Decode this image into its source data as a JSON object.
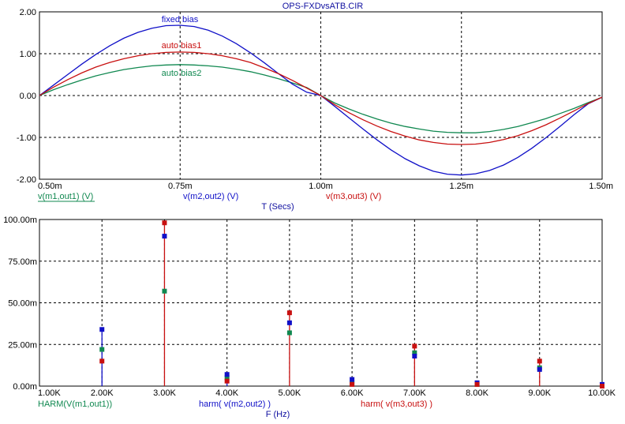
{
  "window": {
    "title": "OPS-FXDvsATB.CIR"
  },
  "colors": {
    "fixed": "#1010c8",
    "auto1": "#c81010",
    "auto2": "#108850",
    "grid": "#000000",
    "axis_text": "#000000",
    "label_blue": "#1010a0"
  },
  "chart_data": [
    {
      "type": "line",
      "title": "OPS-FXDvsATB.CIR",
      "xlabel": "T (Secs)",
      "ylabel": "",
      "x_ticks": [
        "0.50m",
        "0.75m",
        "1.00m",
        "1.25m",
        "1.50m"
      ],
      "y_ticks": [
        "-2.00",
        "-1.00",
        "0.00",
        "1.00",
        "2.00"
      ],
      "xlim": [
        0.0005,
        0.0015
      ],
      "ylim": [
        -2,
        2
      ],
      "grid": true,
      "trace_labels": [
        {
          "name": "v(m1,out1) (V)",
          "color": "#108850"
        },
        {
          "name": "v(m2,out2) (V)",
          "color": "#1010c8"
        },
        {
          "name": "v(m3,out3) (V)",
          "color": "#c81010"
        }
      ],
      "annotations": [
        {
          "text": "fixed bias",
          "series": 1
        },
        {
          "text": "auto bias1",
          "series": 2
        },
        {
          "text": "auto bias2",
          "series": 0
        }
      ],
      "series": [
        {
          "color": "#108850",
          "x": [
            0.0005,
            0.000525,
            0.00055,
            0.000575,
            0.0006,
            0.000625,
            0.00065,
            0.000675,
            0.0007,
            0.000725,
            0.00075,
            0.000775,
            0.0008,
            0.000825,
            0.00085,
            0.000875,
            0.0009,
            0.000925,
            0.00095,
            0.000975,
            0.001,
            0.001025,
            0.00105,
            0.001075,
            0.0011,
            0.001125,
            0.00115,
            0.001175,
            0.0012,
            0.001225,
            0.00125,
            0.001275,
            0.0013,
            0.001325,
            0.00135,
            0.001375,
            0.0014,
            0.001425,
            0.00145,
            0.001475,
            0.0015
          ],
          "y": [
            0.0,
            0.14,
            0.26,
            0.37,
            0.47,
            0.55,
            0.62,
            0.67,
            0.71,
            0.73,
            0.74,
            0.73,
            0.71,
            0.68,
            0.63,
            0.57,
            0.49,
            0.4,
            0.3,
            0.19,
            0.0,
            -0.18,
            -0.32,
            -0.45,
            -0.56,
            -0.66,
            -0.74,
            -0.8,
            -0.85,
            -0.88,
            -0.89,
            -0.89,
            -0.86,
            -0.81,
            -0.74,
            -0.65,
            -0.55,
            -0.43,
            -0.31,
            -0.17,
            -0.04
          ]
        },
        {
          "color": "#1010c8",
          "x": [
            0.0005,
            0.000525,
            0.00055,
            0.000575,
            0.0006,
            0.000625,
            0.00065,
            0.000675,
            0.0007,
            0.000725,
            0.00075,
            0.000775,
            0.0008,
            0.000825,
            0.00085,
            0.000875,
            0.0009,
            0.000925,
            0.00095,
            0.000975,
            0.001,
            0.001025,
            0.00105,
            0.001075,
            0.0011,
            0.001125,
            0.00115,
            0.001175,
            0.0012,
            0.001225,
            0.00125,
            0.001275,
            0.0013,
            0.001325,
            0.00135,
            0.001375,
            0.0014,
            0.001425,
            0.00145,
            0.001475,
            0.0015
          ],
          "y": [
            0.0,
            0.25,
            0.5,
            0.75,
            0.98,
            1.19,
            1.37,
            1.51,
            1.61,
            1.67,
            1.68,
            1.65,
            1.56,
            1.42,
            1.24,
            1.02,
            0.78,
            0.52,
            0.27,
            0.08,
            0.0,
            -0.26,
            -0.53,
            -0.8,
            -1.06,
            -1.3,
            -1.51,
            -1.68,
            -1.81,
            -1.88,
            -1.9,
            -1.87,
            -1.79,
            -1.66,
            -1.48,
            -1.26,
            -1.01,
            -0.74,
            -0.46,
            -0.2,
            -0.04
          ]
        },
        {
          "color": "#c81010",
          "x": [
            0.0005,
            0.000525,
            0.00055,
            0.000575,
            0.0006,
            0.000625,
            0.00065,
            0.000675,
            0.0007,
            0.000725,
            0.00075,
            0.000775,
            0.0008,
            0.000825,
            0.00085,
            0.000875,
            0.0009,
            0.000925,
            0.00095,
            0.000975,
            0.001,
            0.001025,
            0.00105,
            0.001075,
            0.0011,
            0.001125,
            0.00115,
            0.001175,
            0.0012,
            0.001225,
            0.00125,
            0.001275,
            0.0013,
            0.001325,
            0.00135,
            0.001375,
            0.0014,
            0.001425,
            0.00145,
            0.001475,
            0.0015
          ],
          "y": [
            0.0,
            0.2,
            0.38,
            0.54,
            0.68,
            0.79,
            0.88,
            0.95,
            1.0,
            1.03,
            1.04,
            1.03,
            1.0,
            0.95,
            0.88,
            0.79,
            0.66,
            0.52,
            0.36,
            0.18,
            0.0,
            -0.22,
            -0.41,
            -0.58,
            -0.73,
            -0.86,
            -0.97,
            -1.06,
            -1.12,
            -1.16,
            -1.17,
            -1.16,
            -1.12,
            -1.05,
            -0.96,
            -0.84,
            -0.7,
            -0.54,
            -0.37,
            -0.19,
            -0.04
          ]
        }
      ]
    },
    {
      "type": "bar",
      "xlabel": "F (Hz)",
      "ylabel": "",
      "x_ticks": [
        "1.00K",
        "2.00K",
        "3.00K",
        "4.00K",
        "5.00K",
        "6.00K",
        "7.00K",
        "8.00K",
        "9.00K",
        "10.00K"
      ],
      "y_ticks": [
        "0.00m",
        "25.00m",
        "50.00m",
        "75.00m",
        "100.00m"
      ],
      "xlim": [
        1000,
        10000
      ],
      "ylim": [
        0,
        0.1
      ],
      "grid": true,
      "categories": [
        1000,
        2000,
        3000,
        4000,
        5000,
        6000,
        7000,
        8000,
        9000,
        10000
      ],
      "trace_labels": [
        {
          "name": "HARM(V(m1,out1))",
          "color": "#108850"
        },
        {
          "name": "harm(  v(m2,out2) )",
          "color": "#1010c8"
        },
        {
          "name": "harm(  v(m3,out3) )",
          "color": "#c81010"
        }
      ],
      "series": [
        {
          "color": "#108850",
          "values": [
            0.0,
            0.022,
            0.057,
            0.005,
            0.032,
            0.002,
            0.02,
            0.001,
            0.011,
            0.0
          ]
        },
        {
          "color": "#1010c8",
          "values": [
            0.0,
            0.034,
            0.09,
            0.007,
            0.038,
            0.004,
            0.018,
            0.002,
            0.01,
            0.001
          ]
        },
        {
          "color": "#c81010",
          "values": [
            0.0,
            0.015,
            0.098,
            0.003,
            0.044,
            0.001,
            0.024,
            0.001,
            0.015,
            0.0
          ]
        }
      ]
    }
  ]
}
